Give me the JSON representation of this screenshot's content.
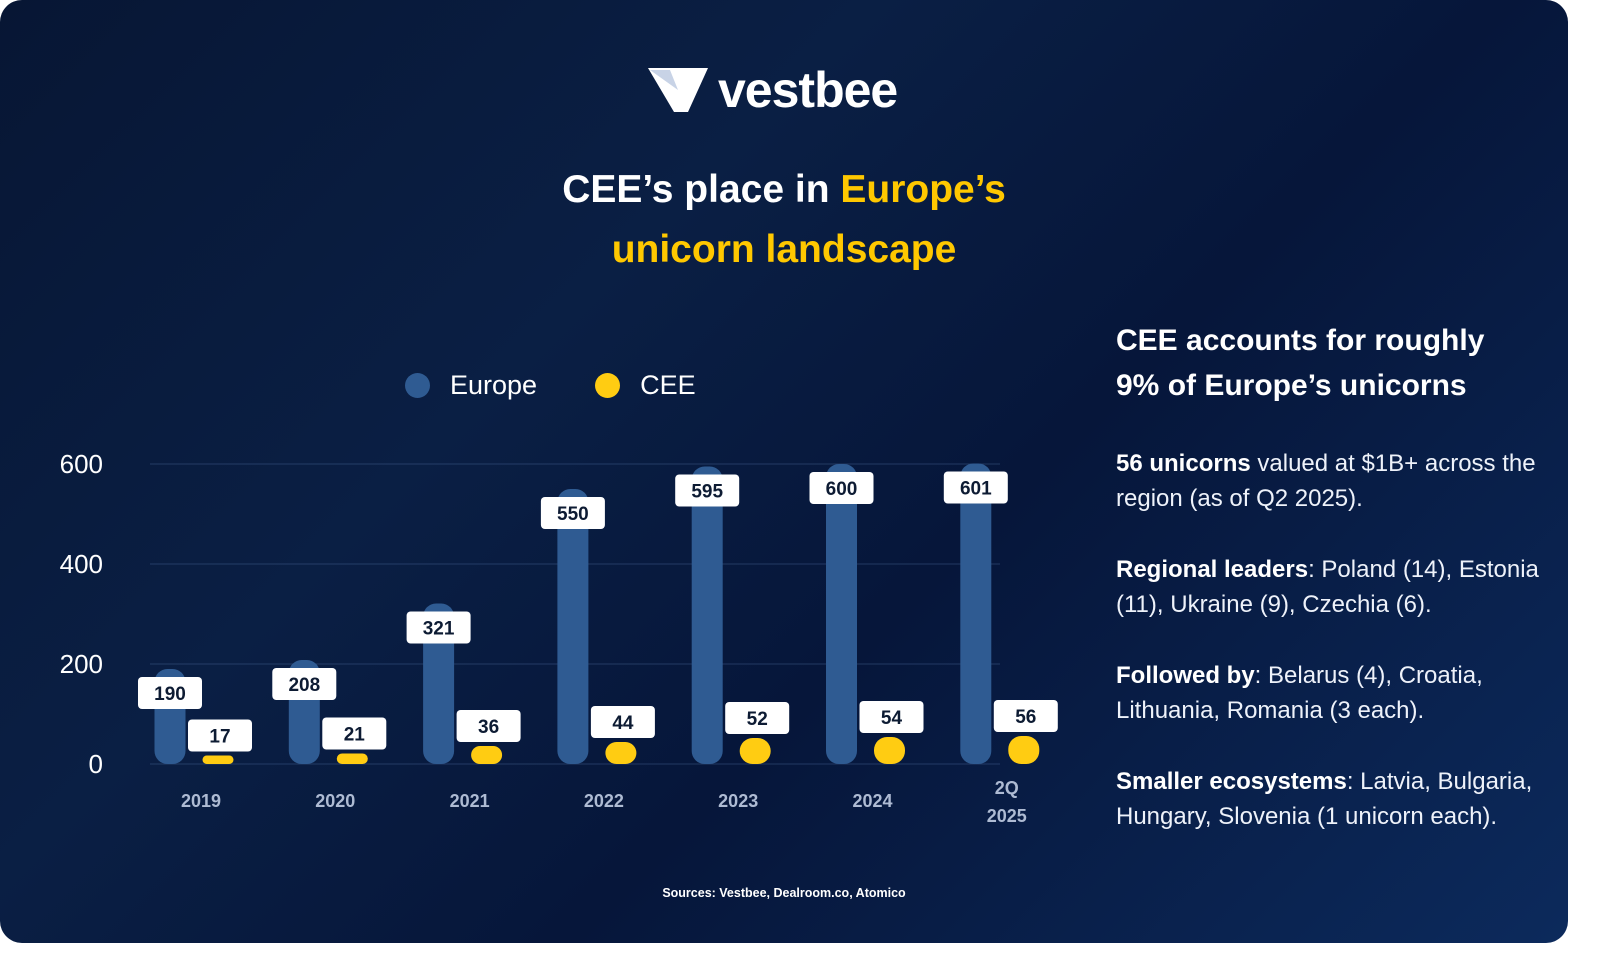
{
  "brand": {
    "name": "vestbee"
  },
  "title": {
    "part1": "CEE’s place in ",
    "part2": "Europe’s",
    "line2": "unicorn landscape"
  },
  "legend": [
    {
      "label": "Europe",
      "color": "#2f5b92"
    },
    {
      "label": "CEE",
      "color": "#ffcc12"
    }
  ],
  "chart_data": {
    "type": "bar",
    "categories": [
      [
        "2019"
      ],
      [
        "2020"
      ],
      [
        "2021"
      ],
      [
        "2022"
      ],
      [
        "2023"
      ],
      [
        "2024"
      ],
      [
        "2Q",
        "2025"
      ]
    ],
    "series": [
      {
        "name": "Europe",
        "color": "#2f5b92",
        "values": [
          190,
          208,
          321,
          550,
          595,
          600,
          601
        ]
      },
      {
        "name": "CEE",
        "color": "#ffcc12",
        "values": [
          17,
          21,
          36,
          44,
          52,
          54,
          56
        ]
      }
    ],
    "yticks": [
      0,
      200,
      400,
      600
    ],
    "ylim": [
      0,
      600
    ],
    "grid": true,
    "data_labels": true,
    "legend_position": "top"
  },
  "side": {
    "heading_line1": "CEE accounts for roughly",
    "heading_line2": "9% of Europe’s unicorns",
    "p1_bold": "56 unicorns",
    "p1_rest": " valued at $1B+ across the region (as of Q2 2025).",
    "p2_bold": "Regional leaders",
    "p2_rest": ": Poland (14), Estonia (11), Ukraine (9), Czechia (6).",
    "p3_bold": "Followed by",
    "p3_rest": ": Belarus (4), Croatia, Lithuania, Romania (3 each).",
    "p4_bold": "Smaller ecosystems",
    "p4_rest": ": Latvia, Bulgaria, Hungary, Slovenia (1 unicorn each)."
  },
  "sources": "Sources: Vestbee, Dealroom.co, Atomico"
}
